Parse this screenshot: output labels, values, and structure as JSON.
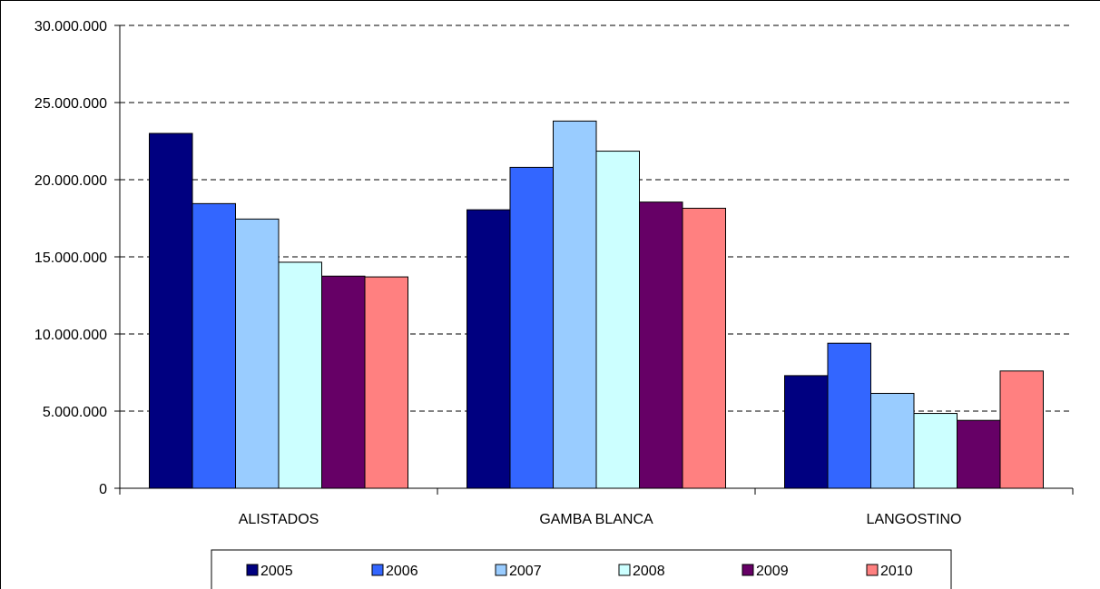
{
  "chart_data": {
    "type": "bar",
    "categories": [
      "ALISTADOS",
      "GAMBA BLANCA",
      "LANGOSTINO"
    ],
    "series": [
      {
        "name": "2005",
        "color": "#000080",
        "values": [
          23000000,
          18050000,
          7300000
        ]
      },
      {
        "name": "2006",
        "color": "#3366FF",
        "values": [
          18450000,
          20800000,
          9400000
        ]
      },
      {
        "name": "2007",
        "color": "#99CCFF",
        "values": [
          17450000,
          23800000,
          6150000
        ]
      },
      {
        "name": "2008",
        "color": "#CCFFFF",
        "values": [
          14650000,
          21850000,
          4850000
        ]
      },
      {
        "name": "2009",
        "color": "#660066",
        "values": [
          13750000,
          18550000,
          4400000
        ]
      },
      {
        "name": "2010",
        "color": "#FF8080",
        "values": [
          13700000,
          18150000,
          7600000
        ]
      }
    ],
    "ylim": [
      0,
      30000000
    ],
    "yticks": [
      0,
      5000000,
      10000000,
      15000000,
      20000000,
      25000000,
      30000000
    ],
    "ytick_labels": [
      "0",
      "5.000.000",
      "10.000.000",
      "15.000.000",
      "20.000.000",
      "25.000.000",
      "30.000.000"
    ],
    "grid": true,
    "legend_position": "bottom",
    "title": "",
    "xlabel": "",
    "ylabel": ""
  }
}
